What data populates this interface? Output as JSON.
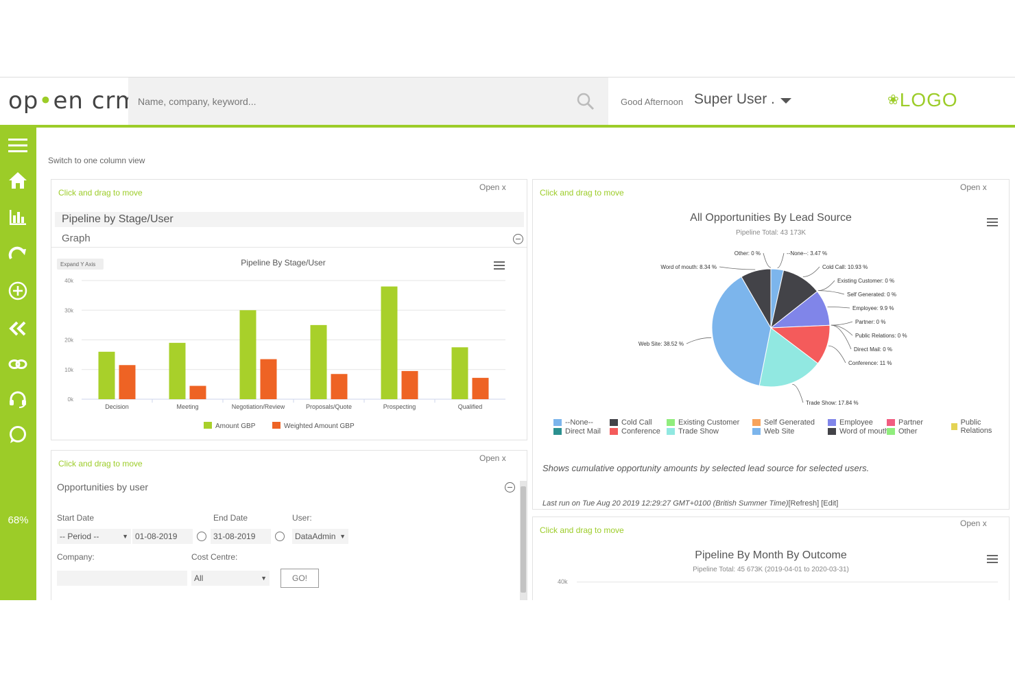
{
  "header": {
    "logo_text_1": "op",
    "logo_text_2": "en crm",
    "search_placeholder": "Name, company, keyword...",
    "greeting": "Good Afternoon",
    "username": "Super User .",
    "brand_logo": "LOGO"
  },
  "sidebar": {
    "icons": [
      "menu-icon",
      "home-icon",
      "bar-chart-icon",
      "refresh-arrow-icon",
      "add-circle-icon",
      "double-chevron-left-icon",
      "link-icon",
      "headset-icon",
      "chat-bubble-icon"
    ],
    "percent": "68%"
  },
  "main": {
    "switch_view": "Switch to one column view",
    "drag_label": "Click and drag to move",
    "open_label": "Open x"
  },
  "widget_pipeline": {
    "title": "Pipeline by Stage/User",
    "subtitle": "Graph",
    "expand_button": "Expand Y Axis",
    "chart_title": "Pipeline By Stage/User"
  },
  "widget_opps_user": {
    "title": "Opportunities by user",
    "start_date_label": "Start Date",
    "end_date_label": "End Date",
    "user_label": "User:",
    "period_value": "-- Period --",
    "start_date_value": "01-08-2019",
    "end_date_value": "31-08-2019",
    "user_value": "DataAdmin",
    "company_label": "Company:",
    "cost_centre_label": "Cost Centre:",
    "cost_centre_value": "All",
    "go_button": "GO!"
  },
  "widget_lead_source": {
    "chart_title": "All Opportunities By Lead Source",
    "chart_subtitle": "Pipeline Total: 43 173K",
    "description": "Shows cumulative opportunity amounts by selected lead source for selected users.",
    "last_run": "Last run on Tue Aug 20 2019 12:29:27 GMT+0100 (British Summer Time)",
    "refresh_link": "[Refresh]",
    "edit_link": "[Edit]"
  },
  "widget_month_outcome": {
    "chart_title": "Pipeline By Month By Outcome",
    "chart_subtitle": "Pipeline Total: 45 673K (2019-04-01 to 2020-03-31)",
    "y_tick_top": "40k"
  },
  "colors": {
    "accent": "#9ccc28",
    "amount": "#a8d02a",
    "weighted": "#ee6324"
  },
  "chart_data": [
    {
      "type": "bar",
      "title": "Pipeline By Stage/User",
      "categories": [
        "Decision",
        "Meeting",
        "Negotiation/Review",
        "Proposals/Quote",
        "Prospecting",
        "Qualified"
      ],
      "series": [
        {
          "name": "Amount GBP",
          "color": "#a8d02a",
          "values": [
            16000,
            19000,
            30000,
            25000,
            38000,
            17500
          ]
        },
        {
          "name": "Weighted Amount GBP",
          "color": "#ee6324",
          "values": [
            11500,
            4500,
            13500,
            8500,
            9500,
            7200
          ]
        }
      ],
      "yticks": [
        "0k",
        "10k",
        "20k",
        "30k",
        "40k"
      ],
      "ylim": [
        0,
        40000
      ],
      "grid": true,
      "legend": "bottom"
    },
    {
      "type": "pie",
      "title": "All Opportunities By Lead Source",
      "subtitle": "Pipeline Total: 43 173K",
      "slices": [
        {
          "name": "--None--",
          "value": 3.47,
          "label": "--None--: 3.47 %",
          "color": "#7cb5ec"
        },
        {
          "name": "Cold Call",
          "value": 10.93,
          "label": "Cold Call: 10.93 %",
          "color": "#434348"
        },
        {
          "name": "Existing Customer",
          "value": 0,
          "label": "Existing Customer: 0 %",
          "color": "#90ed7d"
        },
        {
          "name": "Self Generated",
          "value": 0,
          "label": "Self Generated: 0 %",
          "color": "#f7a35c"
        },
        {
          "name": "Employee",
          "value": 9.9,
          "label": "Employee: 9.9 %",
          "color": "#8085e9"
        },
        {
          "name": "Partner",
          "value": 0,
          "label": "Partner: 0 %",
          "color": "#f15c80"
        },
        {
          "name": "Public Relations",
          "value": 0,
          "label": "Public Relations: 0 %",
          "color": "#e4d354"
        },
        {
          "name": "Direct Mail",
          "value": 0,
          "label": "Direct Mail: 0 %",
          "color": "#2b908f"
        },
        {
          "name": "Conference",
          "value": 11,
          "label": "Conference: 11 %",
          "color": "#f45b5b"
        },
        {
          "name": "Trade Show",
          "value": 17.84,
          "label": "Trade Show: 17.84 %",
          "color": "#91e8e1"
        },
        {
          "name": "Web Site",
          "value": 38.52,
          "label": "Web Site: 38.52 %",
          "color": "#7cb5ec"
        },
        {
          "name": "Word of mouth",
          "value": 8.34,
          "label": "Word of mouth: 8.34 %",
          "color": "#434348"
        },
        {
          "name": "Other",
          "value": 0,
          "label": "Other: 0 %",
          "color": "#90ed7d"
        }
      ],
      "legend": "bottom"
    }
  ]
}
